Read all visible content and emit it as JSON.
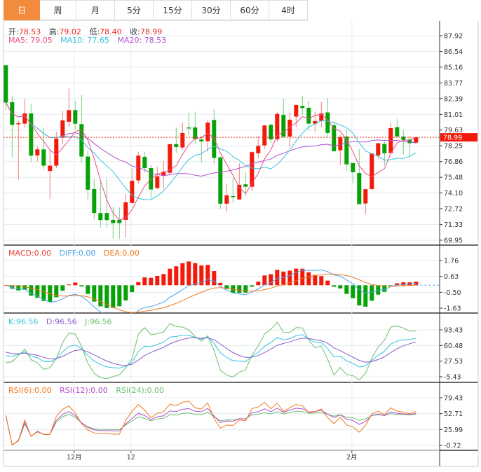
{
  "tabs": [
    {
      "label": "日",
      "active": true
    },
    {
      "label": "周"
    },
    {
      "label": "月"
    },
    {
      "label": "5分"
    },
    {
      "label": "15分"
    },
    {
      "label": "30分"
    },
    {
      "label": "60分"
    },
    {
      "label": "4时"
    }
  ],
  "ohlc_header": {
    "open_label": "开:",
    "open": "78.53",
    "high_label": "高:",
    "high": "79.02",
    "low_label": "低:",
    "low": "78.40",
    "close_label": "收:",
    "close": "78.99"
  },
  "ma_legend": {
    "ma5": "MA5: 79.05",
    "ma10": "MA10: 77.65",
    "ma20": "MA20: 78.53"
  },
  "macd_legend": {
    "macd": "MACD:0.00",
    "diff": "DIFF:0.00",
    "dea": "DEA:0.00"
  },
  "kdj_legend": {
    "k": "K:96.56",
    "d": "D:96.56",
    "j": "J:96.56"
  },
  "rsi_legend": {
    "rsi6": "RSI(6):0.00",
    "rsi12": "RSI(12):0.00",
    "rsi24": "RSI(24):0.00"
  },
  "colors": {
    "up": "#f21a0a",
    "down": "#07a207",
    "ma5": "#ec4d85",
    "ma10": "#35c4dc",
    "ma20": "#b152cc",
    "diff": "#4aa3f0",
    "dea": "#f5791f",
    "k": "#35c4dc",
    "d": "#8a5ccf",
    "j": "#6cbf6c",
    "rsi6": "#f5791f",
    "rsi12": "#b152cc",
    "rsi24": "#6cbf6c",
    "accent": "#f28b3c"
  },
  "chart_data": {
    "type": "candlestick",
    "current_price": "78.99",
    "price_axis": [
      "87.92",
      "86.54",
      "85.16",
      "83.77",
      "82.39",
      "81.01",
      "79.63",
      "78.25",
      "76.86",
      "75.48",
      "74.10",
      "72.72",
      "71.33",
      "69.95"
    ],
    "macd_axis": [
      "1.76",
      "0.63",
      "-0.50",
      "-1.63"
    ],
    "kdj_axis": [
      "93.43",
      "60.48",
      "27.53",
      "-5.43"
    ],
    "rsi_axis": [
      "79.43",
      "52.71",
      "25.99",
      "-0.72"
    ],
    "x_labels": [
      {
        "label": "12月",
        "index": 10
      },
      {
        "label": "12",
        "index": 19
      },
      {
        "label": "2月",
        "index": 54
      }
    ],
    "candles": [
      [
        85.32,
        82.04,
        85.32,
        81.38
      ],
      [
        82.08,
        80.09,
        82.61,
        77.22
      ],
      [
        80.15,
        80.23,
        80.44,
        75.27
      ],
      [
        80.19,
        81.09,
        82.35,
        79.82
      ],
      [
        81.09,
        77.38,
        81.93,
        76.81
      ],
      [
        77.4,
        77.93,
        78.2,
        76.87
      ],
      [
        77.93,
        76.5,
        79.84,
        76.19
      ],
      [
        76.03,
        76.5,
        77.83,
        73.59
      ],
      [
        76.5,
        78.88,
        79.47,
        76.29
      ],
      [
        78.96,
        80.48,
        81.32,
        78.41
      ],
      [
        80.36,
        81.38,
        83.27,
        79.95
      ],
      [
        81.38,
        80.19,
        82.2,
        79.62
      ],
      [
        80.15,
        77.3,
        82.69,
        76.75
      ],
      [
        77.3,
        74.39,
        77.83,
        73.42
      ],
      [
        74.45,
        72.34,
        75.37,
        71.78
      ],
      [
        72.34,
        71.72,
        75.21,
        71.06
      ],
      [
        72.34,
        71.72,
        75.37,
        71.06
      ],
      [
        71.74,
        71.45,
        72.85,
        70.08
      ],
      [
        71.74,
        71.45,
        72.85,
        70.08
      ],
      [
        71.74,
        73.28,
        74.0,
        70.2
      ],
      [
        73.22,
        75.17,
        76.29,
        73.18
      ],
      [
        75.21,
        77.38,
        77.73,
        74.92
      ],
      [
        77.28,
        76.29,
        77.73,
        75.88
      ],
      [
        76.29,
        74.41,
        76.54,
        73.59
      ],
      [
        74.53,
        75.56,
        76.4,
        74.41
      ],
      [
        75.64,
        75.97,
        76.91,
        74.45
      ],
      [
        75.88,
        78.39,
        78.43,
        75.64
      ],
      [
        78.39,
        78.14,
        79.84,
        77.63
      ],
      [
        78.1,
        79.37,
        80.29,
        77.89
      ],
      [
        79.86,
        79.78,
        81.16,
        79.17
      ],
      [
        79.86,
        78.82,
        81.22,
        78.41
      ],
      [
        78.8,
        78.63,
        79.13,
        76.77
      ],
      [
        78.65,
        80.29,
        80.54,
        77.73
      ],
      [
        80.52,
        77.18,
        81.46,
        76.6
      ],
      [
        77.22,
        73.16,
        77.32,
        72.71
      ],
      [
        73.16,
        73.89,
        74.9,
        72.44
      ],
      [
        73.83,
        73.73,
        75.43,
        73.22
      ],
      [
        73.53,
        74.82,
        76.7,
        73.53
      ],
      [
        74.86,
        74.65,
        75.93,
        73.83
      ],
      [
        74.65,
        77.69,
        77.77,
        74.28
      ],
      [
        77.59,
        78.24,
        79.13,
        77.12
      ],
      [
        78.28,
        80.03,
        80.09,
        77.98
      ],
      [
        80.09,
        78.8,
        80.19,
        78.51
      ],
      [
        78.82,
        81.05,
        81.22,
        78.65
      ],
      [
        80.97,
        79.06,
        82.39,
        78.96
      ],
      [
        79.06,
        80.54,
        81.18,
        78.1
      ],
      [
        80.81,
        81.83,
        81.87,
        79.88
      ],
      [
        81.75,
        81.57,
        82.61,
        81.01
      ],
      [
        81.59,
        80.19,
        82.2,
        79.62
      ],
      [
        80.19,
        80.42,
        81.22,
        79.43
      ],
      [
        80.44,
        81.09,
        82.12,
        79.88
      ],
      [
        81.18,
        79.37,
        82.45,
        79.0
      ],
      [
        80.05,
        77.77,
        80.4,
        77.69
      ],
      [
        77.85,
        79.0,
        79.21,
        76.56
      ],
      [
        79.06,
        76.62,
        79.68,
        76.05
      ],
      [
        76.73,
        75.93,
        76.73,
        74.96
      ],
      [
        75.86,
        73.12,
        77.96,
        73.12
      ],
      [
        73.18,
        74.43,
        74.49,
        72.23
      ],
      [
        74.45,
        77.57,
        77.61,
        74.35
      ],
      [
        77.4,
        78.47,
        78.51,
        77.12
      ],
      [
        78.41,
        77.59,
        78.8,
        76.5
      ],
      [
        77.61,
        79.8,
        80.29,
        77.59
      ],
      [
        79.88,
        79.06,
        80.6,
        79.06
      ],
      [
        79.06,
        78.76,
        79.62,
        77.46
      ],
      [
        78.8,
        78.47,
        79.13,
        77.28
      ],
      [
        78.53,
        78.99,
        79.02,
        78.4
      ]
    ]
  }
}
